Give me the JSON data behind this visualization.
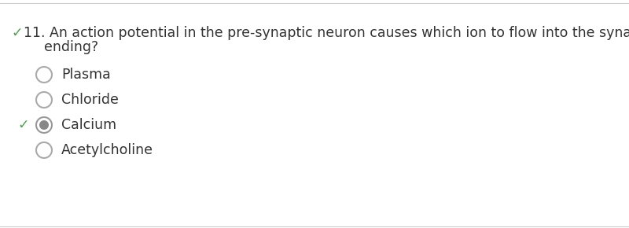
{
  "bg_color": "#ffffff",
  "top_line_color": "#cccccc",
  "question_number": "11. ",
  "question_text_line1": "An action potential in the pre-synaptic neuron causes which ion to flow into the synaptic",
  "question_text_line2": "ending?",
  "check_color": "#4a9e4a",
  "options": [
    "Plasma",
    "Chloride",
    "Calcium",
    "Acetylcholine"
  ],
  "correct_index": 2,
  "radio_color_normal": "#aaaaaa",
  "radio_color_selected_outer": "#999999",
  "radio_color_selected_inner": "#888888",
  "text_color": "#333333",
  "font_size_question": 12.5,
  "font_size_options": 12.5,
  "check_font_size": 12.5,
  "fig_width": 8.0,
  "fig_height": 2.9,
  "dpi": 100
}
